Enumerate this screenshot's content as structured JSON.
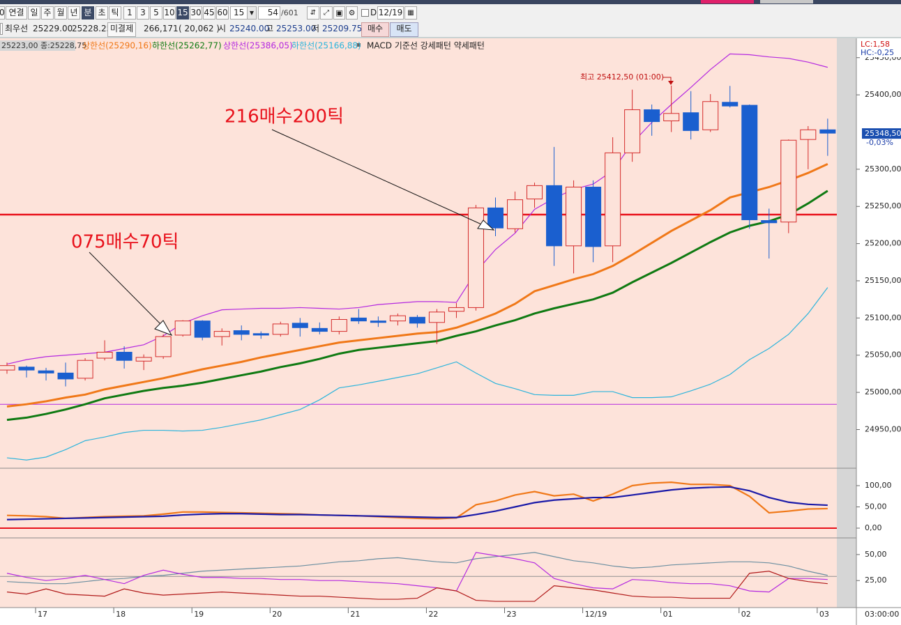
{
  "toolbar": {
    "cut": "0",
    "periods": [
      "연결",
      "일",
      "주",
      "월",
      "년",
      "분",
      "초",
      "틱"
    ],
    "intervals": [
      "1",
      "3",
      "5",
      "10",
      "15",
      "30",
      "45",
      "60"
    ],
    "interval_select": "15",
    "count": "54",
    "count_total": "/601",
    "d_label": "D",
    "date": "12/19"
  },
  "quote_bar": {
    "best_label": "최우선",
    "best_bid": "25229.00",
    "best_ask": "25228.25",
    "oi_label": "미결제",
    "oi": "266,171",
    "oi_change": "( 20,062 )",
    "open_label": "시",
    "open": "25240.00",
    "high_label": "고",
    "high": "25253.00",
    "low_label": "저",
    "low": "25209.75",
    "buy": "매수",
    "sell": "매도"
  },
  "chart_data": [
    {
      "type": "candlestick",
      "info": "25223,00 종:25228,75",
      "study_label": "MACD 기준선 강세패턴  약세패턴",
      "open": [
        25030,
        25034,
        25029,
        25026,
        25019,
        25046,
        25054,
        25042,
        25048,
        25077,
        25096,
        25075,
        25083,
        25079,
        25078,
        25093,
        25086,
        25082,
        25100,
        25096,
        25096,
        25101,
        25094,
        25109,
        25114,
        25248,
        25220,
        25260,
        25278,
        25197,
        25276,
        25197,
        25322,
        25380,
        25365,
        25376,
        25353,
        25390,
        25386,
        25231,
        25229,
        25340,
        25353
      ],
      "high": [
        25040,
        25036,
        25033,
        25040,
        25046,
        25070,
        25062,
        25051,
        25078,
        25097,
        25097,
        25086,
        25090,
        25082,
        25095,
        25100,
        25094,
        25102,
        25112,
        25102,
        25106,
        25104,
        25112,
        25120,
        25252,
        25262,
        25270,
        25282,
        25330,
        25285,
        25285,
        25343,
        25407,
        25387,
        25412.5,
        25405,
        25401,
        25412,
        25387,
        25247,
        25340,
        25358,
        25368
      ],
      "low": [
        25025,
        25020,
        25016,
        25008,
        25016,
        25043,
        25032,
        25030,
        25045,
        25075,
        25070,
        25063,
        25070,
        25072,
        25075,
        25075,
        25078,
        25078,
        25092,
        25088,
        25090,
        25087,
        25065,
        25100,
        25110,
        25210,
        25215,
        25248,
        25170,
        25160,
        25175,
        25175,
        25310,
        25345,
        25350,
        25340,
        25350,
        25383,
        25220,
        25180,
        25214,
        25300,
        25318
      ],
      "close": [
        25036,
        25030,
        25026,
        25018,
        25043,
        25054,
        25043,
        25047,
        25075,
        25096,
        25074,
        25082,
        25078,
        25077,
        25092,
        25087,
        25082,
        25098,
        25096,
        25094,
        25103,
        25093,
        25108,
        25114,
        25248,
        25221,
        25259,
        25278,
        25197,
        25276,
        25196,
        25322,
        25380,
        25364,
        25375,
        25352,
        25391,
        25385,
        25232,
        25228,
        25339,
        25353,
        25348.5
      ],
      "up_color": "#d42a2a",
      "down_color": "#1a5fcf",
      "series": [
        {
          "name": "상한선(25290,16)",
          "color": "#f07818",
          "values": [
            24981,
            24984,
            24988,
            24993,
            24997,
            25004,
            25009,
            25014,
            25019,
            25025,
            25031,
            25036,
            25041,
            25047,
            25052,
            25057,
            25062,
            25067,
            25070,
            25073,
            25076,
            25079,
            25081,
            25087,
            25096,
            25106,
            25119,
            25136,
            25144,
            25152,
            25159,
            25170,
            25185,
            25201,
            25217,
            25231,
            25245,
            25262,
            25269,
            25276,
            25285,
            25295,
            25307
          ]
        },
        {
          "name": "하한선(25262,77)",
          "color": "#0f7a12",
          "values": [
            24963,
            24966,
            24971,
            24977,
            24984,
            24992,
            24997,
            25002,
            25006,
            25009,
            25013,
            25018,
            25023,
            25028,
            25034,
            25039,
            25045,
            25052,
            25057,
            25060,
            25063,
            25066,
            25069,
            25076,
            25082,
            25090,
            25097,
            25106,
            25113,
            25119,
            25125,
            25134,
            25148,
            25161,
            25174,
            25188,
            25202,
            25215,
            25224,
            25230,
            25239,
            25254,
            25271
          ]
        },
        {
          "name": "상한선(25386,05)",
          "color": "#b428e0",
          "values": [
            25038,
            25044,
            25048,
            25050,
            25052,
            25054,
            25059,
            25064,
            25076,
            25093,
            25103,
            25111,
            25112,
            25113,
            25113,
            25114,
            25113,
            25112,
            25114,
            25118,
            25120,
            25122,
            25122,
            25121,
            25162,
            25192,
            25214,
            25246,
            25261,
            25273,
            25280,
            25298,
            25335,
            25363,
            25387,
            25410,
            25434,
            25455,
            25454,
            25451,
            25449,
            25444,
            25437
          ]
        },
        {
          "name": "하한선(25166,88)",
          "color": "#2bb4dc",
          "values": [
            24912,
            24909,
            24913,
            24923,
            24935,
            24940,
            24946,
            24949,
            24949,
            24948,
            24949,
            24953,
            24958,
            24963,
            24970,
            24977,
            24990,
            25006,
            25010,
            25015,
            25020,
            25025,
            25033,
            25041,
            25026,
            25012,
            25005,
            24997,
            24996,
            24996,
            25001,
            25001,
            24993,
            24993,
            24994,
            25002,
            25011,
            25024,
            25044,
            25059,
            25078,
            25106,
            25141
          ]
        }
      ],
      "hlines": [
        {
          "value": 25239,
          "color": "#e8101a"
        },
        {
          "value": 24984,
          "color": "#b428e0"
        }
      ],
      "ylim": [
        24898,
        25476
      ],
      "yticks": [
        {
          "value": 24950,
          "label": "24950,00"
        },
        {
          "value": 25000,
          "label": "25000,00"
        },
        {
          "value": 25050,
          "label": "25050,00"
        },
        {
          "value": 25100,
          "label": "25100,00"
        },
        {
          "value": 25150,
          "label": "25150,00"
        },
        {
          "value": 25200,
          "label": "25200,00"
        },
        {
          "value": 25250,
          "label": "25250,00"
        },
        {
          "value": 25300,
          "label": "25300,00"
        },
        {
          "value": 25400,
          "label": "25400,00"
        },
        {
          "value": 25450,
          "label": "25450,00"
        }
      ],
      "annotations": [
        "216매수200틱",
        "075매수70틱"
      ],
      "high_label": "최고 25412,50 (01:00)",
      "lc": "LC:1,58",
      "hc": "HC:-0,25",
      "last_label": "25348,50",
      "last_change": "-0,03%"
    },
    {
      "type": "line",
      "series": [
        {
          "color": "#f07818",
          "values": [
            30,
            29,
            27,
            23,
            25,
            27,
            28,
            29,
            33,
            38,
            38,
            37,
            36,
            35,
            34,
            33,
            31,
            30,
            29,
            27,
            25,
            23,
            22,
            24,
            55,
            64,
            78,
            86,
            76,
            80,
            64,
            80,
            100,
            106,
            108,
            103,
            103,
            100,
            75,
            36,
            40,
            45,
            46
          ]
        },
        {
          "color": "#1a1aa8",
          "values": [
            20,
            21,
            22,
            23,
            24,
            25,
            26,
            27,
            28,
            31,
            33,
            34,
            34,
            33,
            32,
            32,
            31,
            30,
            29,
            28,
            27,
            26,
            25,
            25,
            32,
            40,
            50,
            60,
            66,
            69,
            72,
            72,
            78,
            84,
            90,
            94,
            96,
            97,
            88,
            72,
            61,
            56,
            54
          ]
        }
      ],
      "zero_line": {
        "value": 0,
        "color": "#e8101a"
      },
      "ylim": [
        -23,
        141
      ],
      "yticks": [
        {
          "value": 0,
          "label": "0,00"
        },
        {
          "value": 50,
          "label": "50,00"
        },
        {
          "value": 100,
          "label": "100,00"
        }
      ]
    },
    {
      "type": "line",
      "series": [
        {
          "color": "#6a8ea0",
          "values": [
            24,
            23,
            22,
            22,
            24,
            26,
            27,
            29,
            30,
            32,
            34,
            35,
            36,
            37,
            38,
            39,
            41,
            43,
            44,
            46,
            47,
            45,
            43,
            42,
            46,
            48,
            50,
            52,
            48,
            44,
            42,
            39,
            37,
            38,
            40,
            41,
            42,
            43,
            43,
            42,
            39,
            34,
            30
          ]
        },
        {
          "color": "#b428e0",
          "values": [
            32,
            28,
            25,
            27,
            30,
            26,
            22,
            30,
            35,
            31,
            28,
            28,
            27,
            27,
            26,
            26,
            25,
            25,
            24,
            23,
            22,
            20,
            18,
            15,
            52,
            49,
            46,
            42,
            27,
            22,
            18,
            17,
            26,
            25,
            23,
            22,
            22,
            20,
            15,
            14,
            27,
            27,
            26
          ]
        },
        {
          "color": "#b01818",
          "values": [
            14,
            12,
            17,
            12,
            11,
            10,
            17,
            13,
            11,
            12,
            13,
            14,
            13,
            12,
            11,
            10,
            10,
            9,
            8,
            7,
            7,
            8,
            18,
            15,
            6,
            5,
            5,
            5,
            20,
            18,
            16,
            13,
            10,
            9,
            9,
            8,
            8,
            8,
            32,
            34,
            27,
            24,
            22
          ]
        }
      ],
      "ref_line": {
        "value": 29,
        "color": "#909090"
      },
      "ylim": [
        -1,
        66
      ],
      "yticks": [
        {
          "value": 25,
          "label": "25,00"
        },
        {
          "value": 50,
          "label": "50,00"
        }
      ],
      "categories": [
        null,
        null,
        "17",
        null,
        null,
        null,
        "18",
        null,
        null,
        null,
        "19",
        null,
        null,
        null,
        "20",
        null,
        null,
        null,
        "21",
        null,
        null,
        null,
        "22",
        null,
        null,
        null,
        "23",
        null,
        null,
        null,
        "12/19",
        null,
        null,
        null,
        "01",
        null,
        null,
        null,
        "02",
        null,
        null,
        null,
        "03"
      ],
      "time_label": "03:00:00"
    }
  ]
}
